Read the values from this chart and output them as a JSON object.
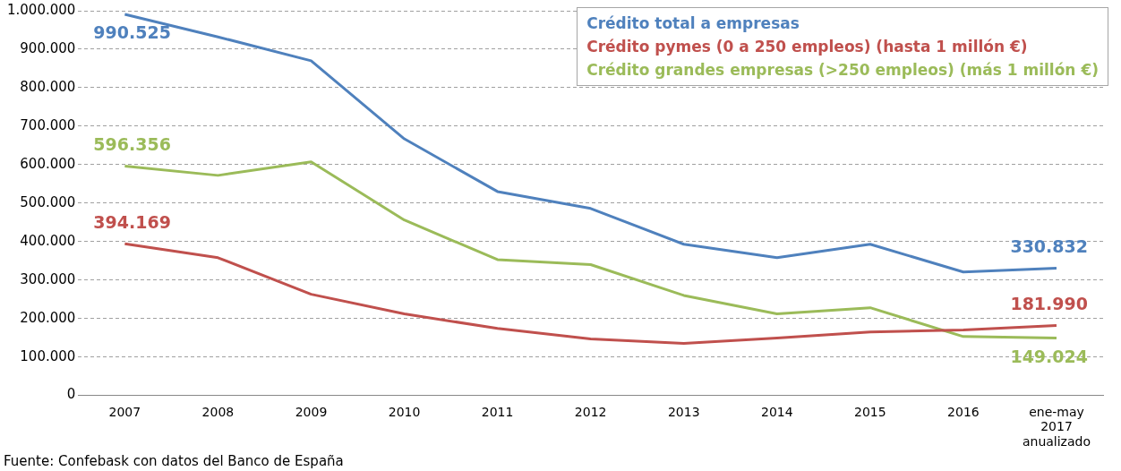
{
  "chart_data": {
    "type": "line",
    "categories": [
      "2007",
      "2008",
      "2009",
      "2010",
      "2011",
      "2012",
      "2013",
      "2014",
      "2015",
      "2016",
      "ene-may 2017 anualizado"
    ],
    "series": [
      {
        "name": "Crédito total a empresas",
        "color": "#4f81bd",
        "values": [
          990525,
          932000,
          870000,
          667000,
          530000,
          486000,
          393000,
          358000,
          393000,
          321000,
          330832
        ],
        "value_labels": [
          "990.525",
          null,
          null,
          null,
          null,
          null,
          null,
          null,
          null,
          null,
          "330.832"
        ]
      },
      {
        "name": "Crédito pymes (0 a 250 empleos) (hasta 1 millón €)",
        "color": "#c0504d",
        "values": [
          394169,
          358000,
          263000,
          212000,
          174000,
          147000,
          135000,
          149000,
          165000,
          170000,
          181990
        ],
        "value_labels": [
          "394.169",
          null,
          null,
          null,
          null,
          null,
          null,
          null,
          null,
          null,
          "181.990"
        ]
      },
      {
        "name": "Crédito grandes empresas (>250 empleos) (más 1 millón €)",
        "color": "#9bbb59",
        "values": [
          596356,
          572000,
          607000,
          456000,
          353000,
          340000,
          260000,
          212000,
          228000,
          153000,
          149024
        ],
        "value_labels": [
          "596.356",
          null,
          null,
          null,
          null,
          null,
          null,
          null,
          null,
          null,
          "149.024"
        ]
      }
    ],
    "ylim": [
      0,
      1000000
    ],
    "yticks": [
      {
        "value": 0,
        "label": "0"
      },
      {
        "value": 100000,
        "label": "100.000"
      },
      {
        "value": 200000,
        "label": "200.000"
      },
      {
        "value": 300000,
        "label": "300.000"
      },
      {
        "value": 400000,
        "label": "400.000"
      },
      {
        "value": 500000,
        "label": "500.000"
      },
      {
        "value": 600000,
        "label": "600.000"
      },
      {
        "value": 700000,
        "label": "700.000"
      },
      {
        "value": 800000,
        "label": "800.000"
      },
      {
        "value": 900000,
        "label": "900.000"
      },
      {
        "value": 1000000,
        "label": "1.000.000"
      }
    ],
    "grid": "y",
    "legend": "top right",
    "marker": "none",
    "line_style": "solid",
    "annotations": [
      "Fuente: Confebask con datos del Banco de España"
    ]
  }
}
